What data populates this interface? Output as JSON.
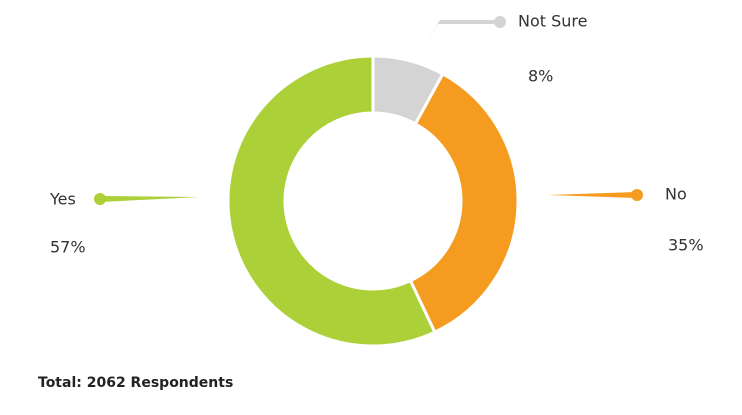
{
  "chart_data": {
    "type": "donut",
    "categories": [
      "Not Sure",
      "No",
      "Yes"
    ],
    "values": [
      8,
      35,
      57
    ],
    "value_labels": [
      "8%",
      "35%",
      "57%"
    ],
    "colors": [
      "#d4d4d4",
      "#f59c20",
      "#acd038"
    ],
    "footnote": "Total: 2062 Respondents"
  }
}
